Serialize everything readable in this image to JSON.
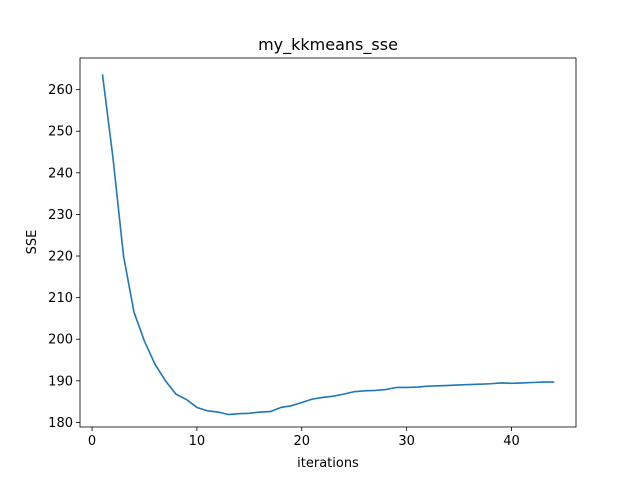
{
  "chart_data": {
    "type": "line",
    "title": "my_kkmeans_sse",
    "xlabel": "iterations",
    "ylabel": "SSE",
    "xlim": [
      -1.15,
      46.15
    ],
    "ylim": [
      178.9,
      267.6
    ],
    "xticks": [
      0,
      10,
      20,
      30,
      40
    ],
    "yticks": [
      180,
      190,
      200,
      210,
      220,
      230,
      240,
      250,
      260
    ],
    "grid": false,
    "line_color": "#1f77b4",
    "series": [
      {
        "x": [
          1,
          2,
          3,
          4,
          5,
          6,
          7,
          8,
          9,
          10,
          11,
          12,
          13,
          14,
          15,
          16,
          17,
          18,
          19,
          20,
          21,
          22,
          23,
          24,
          25,
          26,
          27,
          28,
          29,
          30,
          31,
          32,
          33,
          34,
          35,
          36,
          37,
          38,
          39,
          40,
          41,
          42,
          43,
          44
        ],
        "y": [
          263.5,
          243.5,
          220.0,
          206.5,
          199.5,
          194.0,
          190.0,
          186.8,
          185.5,
          183.6,
          182.8,
          182.5,
          181.9,
          182.1,
          182.2,
          182.5,
          182.6,
          183.6,
          184.0,
          184.8,
          185.6,
          186.0,
          186.3,
          186.8,
          187.4,
          187.6,
          187.7,
          187.9,
          188.4,
          188.4,
          188.5,
          188.7,
          188.8,
          188.9,
          189.0,
          189.1,
          189.2,
          189.3,
          189.5,
          189.4,
          189.5,
          189.6,
          189.7,
          189.7
        ]
      }
    ]
  }
}
